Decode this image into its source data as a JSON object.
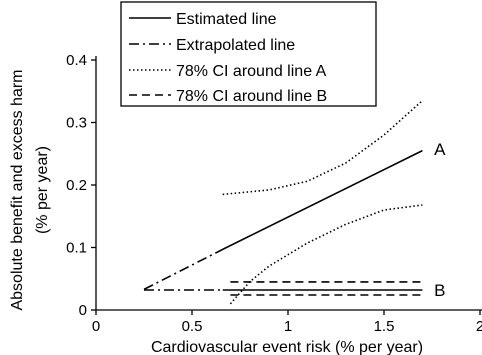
{
  "chart_data": {
    "type": "line",
    "xlabel": "Cardiovascular event risk (% per year)",
    "ylabel_lines": [
      "Absolute benefit and excess harm",
      "(% per year)"
    ],
    "xlim": [
      0,
      2
    ],
    "ylim": [
      0,
      0.4
    ],
    "xticks": [
      0,
      0.5,
      1,
      1.5,
      2
    ],
    "xtick_labels": [
      "0",
      "0.5",
      "1",
      "1.5",
      "2"
    ],
    "yticks": [
      0,
      0.1,
      0.2,
      0.3,
      0.4
    ],
    "ytick_labels": [
      "0",
      "0.1",
      "0.2",
      "0.3",
      "0.4"
    ],
    "grid": false,
    "legend_position": "top-left",
    "legend": [
      {
        "label": "Estimated line",
        "style": "solid"
      },
      {
        "label": "Extrapolated line",
        "style": "dashdot"
      },
      {
        "label": "78% CI around line A",
        "style": "dotted"
      },
      {
        "label": "78% CI around line B",
        "style": "dashed"
      }
    ],
    "series": [
      {
        "line": "A",
        "style": "solid",
        "x": [
          0.66,
          1.7
        ],
        "y": [
          0.097,
          0.255
        ]
      },
      {
        "line": "A",
        "style": "dashdot",
        "x": [
          0.25,
          0.66
        ],
        "y": [
          0.033,
          0.097
        ]
      },
      {
        "line": "A",
        "style": "dotted",
        "x": [
          0.66,
          0.9,
          1.1,
          1.3,
          1.5,
          1.7
        ],
        "y": [
          0.185,
          0.192,
          0.206,
          0.235,
          0.28,
          0.335
        ]
      },
      {
        "line": "A",
        "style": "dotted",
        "x": [
          0.7,
          0.8,
          0.9,
          1.1,
          1.3,
          1.5,
          1.7
        ],
        "y": [
          0.01,
          0.045,
          0.07,
          0.107,
          0.137,
          0.16,
          0.168
        ]
      },
      {
        "line": "B",
        "style": "solid",
        "x": [
          0.66,
          1.7
        ],
        "y": [
          0.032,
          0.032
        ]
      },
      {
        "line": "B",
        "style": "dashdot",
        "x": [
          0.25,
          0.66
        ],
        "y": [
          0.032,
          0.032
        ]
      },
      {
        "line": "B",
        "style": "dashed",
        "x": [
          0.7,
          1.7
        ],
        "y": [
          0.045,
          0.045
        ]
      },
      {
        "line": "B",
        "style": "dashed",
        "x": [
          0.7,
          1.7
        ],
        "y": [
          0.024,
          0.024
        ]
      }
    ],
    "end_labels": [
      {
        "text": "A",
        "x": 1.74,
        "y": 0.258
      },
      {
        "text": "B",
        "x": 1.74,
        "y": 0.032
      }
    ]
  }
}
